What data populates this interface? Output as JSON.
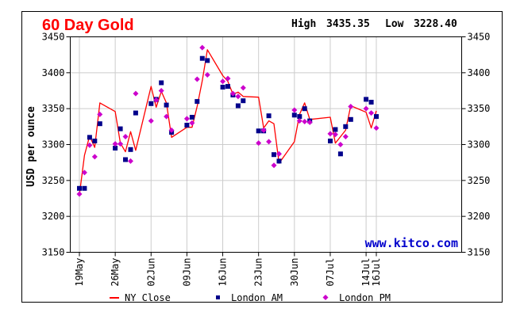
{
  "chart_data": {
    "type": "line",
    "title": "60 Day Gold",
    "summary": {
      "high_label": "High",
      "high": "3435.35",
      "low_label": "Low",
      "low": "3228.40"
    },
    "ylabel": "USD per ounce",
    "watermark": "www.kitco.com",
    "ylim": [
      3150,
      3450
    ],
    "yticks": [
      3150,
      3200,
      3250,
      3300,
      3350,
      3400,
      3450
    ],
    "xlim": [
      "2025-05-19",
      "2025-07-16"
    ],
    "xticks": [
      {
        "date": "2025-05-19",
        "label": "19May"
      },
      {
        "date": "2025-05-26",
        "label": "26May"
      },
      {
        "date": "2025-06-02",
        "label": "02Jun"
      },
      {
        "date": "2025-06-09",
        "label": "09Jun"
      },
      {
        "date": "2025-06-16",
        "label": "16Jun"
      },
      {
        "date": "2025-06-23",
        "label": "23Jun"
      },
      {
        "date": "2025-06-30",
        "label": "30Jun"
      },
      {
        "date": "2025-07-07",
        "label": "07Jul"
      },
      {
        "date": "2025-07-14",
        "label": "14Jul"
      },
      {
        "date": "2025-07-16",
        "label": "16Jul"
      }
    ],
    "grid": true,
    "legend_position": "bottom",
    "colors": {
      "ny_close": "#ff0000",
      "london_am": "#00008b",
      "london_pm": "#cc00cc",
      "title": "#ff0000",
      "watermark": "#0000cc",
      "grid": "#cccccc"
    },
    "series": [
      {
        "name": "NY Close",
        "kind": "line",
        "points": [
          [
            "2025-05-19",
            3230
          ],
          [
            "2025-05-20",
            3285
          ],
          [
            "2025-05-21",
            3312
          ],
          [
            "2025-05-22",
            3296
          ],
          [
            "2025-05-23",
            3358
          ],
          [
            "2025-05-26",
            3346
          ],
          [
            "2025-05-27",
            3302
          ],
          [
            "2025-05-28",
            3290
          ],
          [
            "2025-05-29",
            3318
          ],
          [
            "2025-05-30",
            3292
          ],
          [
            "2025-06-02",
            3381
          ],
          [
            "2025-06-03",
            3352
          ],
          [
            "2025-06-04",
            3374
          ],
          [
            "2025-06-05",
            3358
          ],
          [
            "2025-06-06",
            3310
          ],
          [
            "2025-06-09",
            3324
          ],
          [
            "2025-06-10",
            3324
          ],
          [
            "2025-06-11",
            3353
          ],
          [
            "2025-06-12",
            3389
          ],
          [
            "2025-06-13",
            3432
          ],
          [
            "2025-06-16",
            3396
          ],
          [
            "2025-06-17",
            3388
          ],
          [
            "2025-06-18",
            3370
          ],
          [
            "2025-06-19",
            3373
          ],
          [
            "2025-06-20",
            3367
          ],
          [
            "2025-06-23",
            3366
          ],
          [
            "2025-06-24",
            3323
          ],
          [
            "2025-06-25",
            3333
          ],
          [
            "2025-06-26",
            3329
          ],
          [
            "2025-06-27",
            3274
          ],
          [
            "2025-06-30",
            3304
          ],
          [
            "2025-07-01",
            3342
          ],
          [
            "2025-07-02",
            3358
          ],
          [
            "2025-07-03",
            3335
          ],
          [
            "2025-07-07",
            3338
          ],
          [
            "2025-07-08",
            3302
          ],
          [
            "2025-07-09",
            3311
          ],
          [
            "2025-07-10",
            3320
          ],
          [
            "2025-07-11",
            3354
          ],
          [
            "2025-07-14",
            3345
          ],
          [
            "2025-07-15",
            3323
          ],
          [
            "2025-07-16",
            3347
          ]
        ]
      },
      {
        "name": "London AM",
        "kind": "square",
        "points": [
          [
            "2025-05-19",
            3239
          ],
          [
            "2025-05-20",
            3239
          ],
          [
            "2025-05-21",
            3310
          ],
          [
            "2025-05-22",
            3305
          ],
          [
            "2025-05-23",
            3329
          ],
          [
            "2025-05-26",
            3295
          ],
          [
            "2025-05-27",
            3322
          ],
          [
            "2025-05-28",
            3279
          ],
          [
            "2025-05-29",
            3293
          ],
          [
            "2025-05-30",
            3344
          ],
          [
            "2025-06-02",
            3357
          ],
          [
            "2025-06-03",
            3363
          ],
          [
            "2025-06-04",
            3386
          ],
          [
            "2025-06-05",
            3355
          ],
          [
            "2025-06-06",
            3317
          ],
          [
            "2025-06-09",
            3327
          ],
          [
            "2025-06-10",
            3338
          ],
          [
            "2025-06-11",
            3360
          ],
          [
            "2025-06-12",
            3420
          ],
          [
            "2025-06-13",
            3417
          ],
          [
            "2025-06-16",
            3380
          ],
          [
            "2025-06-17",
            3381
          ],
          [
            "2025-06-18",
            3369
          ],
          [
            "2025-06-19",
            3354
          ],
          [
            "2025-06-20",
            3361
          ],
          [
            "2025-06-23",
            3319
          ],
          [
            "2025-06-24",
            3319
          ],
          [
            "2025-06-25",
            3340
          ],
          [
            "2025-06-26",
            3286
          ],
          [
            "2025-06-27",
            3277
          ],
          [
            "2025-06-30",
            3341
          ],
          [
            "2025-07-01",
            3339
          ],
          [
            "2025-07-02",
            3350
          ],
          [
            "2025-07-03",
            3333
          ],
          [
            "2025-07-07",
            3305
          ],
          [
            "2025-07-08",
            3321
          ],
          [
            "2025-07-09",
            3287
          ],
          [
            "2025-07-10",
            3325
          ],
          [
            "2025-07-11",
            3335
          ],
          [
            "2025-07-14",
            3363
          ],
          [
            "2025-07-15",
            3359
          ],
          [
            "2025-07-16",
            3339
          ]
        ]
      },
      {
        "name": "London PM",
        "kind": "diamond",
        "points": [
          [
            "2025-05-19",
            3231
          ],
          [
            "2025-05-20",
            3261
          ],
          [
            "2025-05-21",
            3299
          ],
          [
            "2025-05-22",
            3283
          ],
          [
            "2025-05-23",
            3342
          ],
          [
            "2025-05-26",
            3301
          ],
          [
            "2025-05-27",
            3301
          ],
          [
            "2025-05-28",
            3311
          ],
          [
            "2025-05-29",
            3277
          ],
          [
            "2025-05-30",
            3371
          ],
          [
            "2025-06-02",
            3333
          ],
          [
            "2025-06-03",
            3362
          ],
          [
            "2025-06-04",
            3375
          ],
          [
            "2025-06-05",
            3339
          ],
          [
            "2025-06-06",
            3320
          ],
          [
            "2025-06-09",
            3336
          ],
          [
            "2025-06-10",
            3330
          ],
          [
            "2025-06-11",
            3391
          ],
          [
            "2025-06-12",
            3435
          ],
          [
            "2025-06-13",
            3397
          ],
          [
            "2025-06-16",
            3388
          ],
          [
            "2025-06-17",
            3392
          ],
          [
            "2025-06-18",
            3371
          ],
          [
            "2025-06-19",
            3367
          ],
          [
            "2025-06-20",
            3379
          ],
          [
            "2025-06-23",
            3302
          ],
          [
            "2025-06-24",
            3320
          ],
          [
            "2025-06-25",
            3304
          ],
          [
            "2025-06-26",
            3271
          ],
          [
            "2025-06-27",
            3287
          ],
          [
            "2025-06-30",
            3348
          ],
          [
            "2025-07-01",
            3333
          ],
          [
            "2025-07-02",
            3332
          ],
          [
            "2025-07-03",
            3331
          ],
          [
            "2025-07-07",
            3315
          ],
          [
            "2025-07-08",
            3314
          ],
          [
            "2025-07-09",
            3300
          ],
          [
            "2025-07-10",
            3311
          ],
          [
            "2025-07-11",
            3353
          ],
          [
            "2025-07-14",
            3350
          ],
          [
            "2025-07-15",
            3344
          ],
          [
            "2025-07-16",
            3323
          ]
        ]
      }
    ]
  }
}
